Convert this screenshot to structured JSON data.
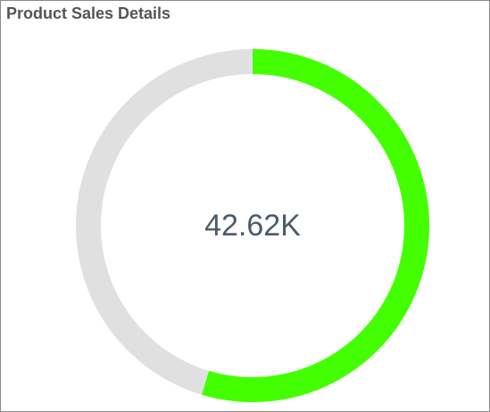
{
  "chart_data": {
    "type": "gauge",
    "title": "Product Sales Details",
    "values": [
      42620
    ],
    "value_labels": [
      "42.62K"
    ],
    "ylim": [
      0,
      78000
    ],
    "color": "#44ff00",
    "track_color": "#e0e0e0"
  }
}
